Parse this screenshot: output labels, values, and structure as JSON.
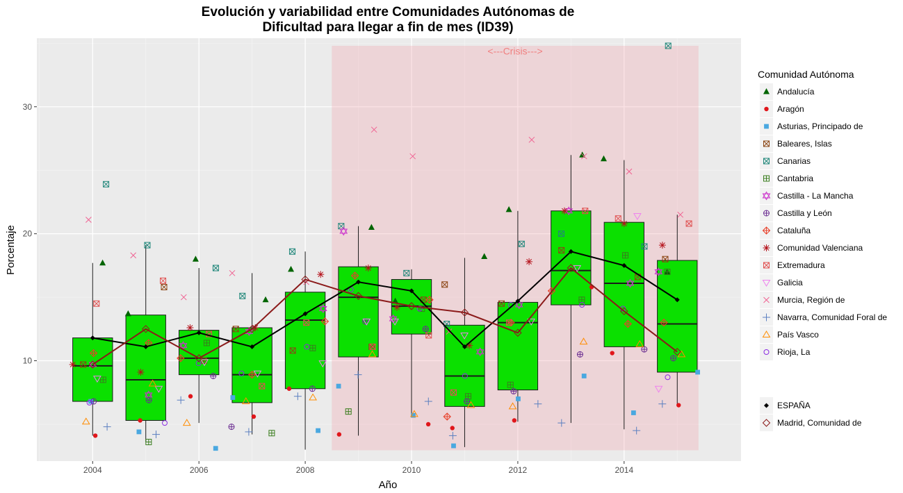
{
  "chart_data": {
    "type": "boxplot",
    "title": [
      "Evolución y variabilidad entre Comunidades Autónomas de",
      "Dificultad para llegar a fin de mes (ID39)"
    ],
    "xlabel": "Año",
    "ylabel": "Porcentaje",
    "xlim": [
      2002.95,
      2016.2
    ],
    "ylim": [
      2.1,
      35.4
    ],
    "x_ticks": [
      2004,
      2006,
      2008,
      2010,
      2012,
      2014
    ],
    "y_ticks": [
      10,
      20,
      30
    ],
    "grid": true,
    "crisis": {
      "label": "<---Crisis--->",
      "x_range": [
        2008.5,
        2015.4
      ],
      "y_range": [
        2.95,
        34.8
      ],
      "label_y": 34.4
    },
    "box_color": "#0be000",
    "boxes": [
      {
        "year": 2004,
        "whisker_low": 4.1,
        "q1": 6.8,
        "median": 9.6,
        "q3": 11.8,
        "whisker_high": 17.7
      },
      {
        "year": 2005,
        "whisker_low": 3.6,
        "q1": 5.3,
        "median": 8.5,
        "q3": 13.6,
        "whisker_high": 19.1
      },
      {
        "year": 2006,
        "whisker_low": 5.1,
        "q1": 8.9,
        "median": 10.2,
        "q3": 12.4,
        "whisker_high": 17.3
      },
      {
        "year": 2007,
        "whisker_low": 4.2,
        "q1": 6.7,
        "median": 8.9,
        "q3": 12.6,
        "whisker_high": 16.9
      },
      {
        "year": 2008,
        "whisker_low": 3.0,
        "q1": 7.8,
        "median": 13.2,
        "q3": 15.4,
        "whisker_high": 18.6
      },
      {
        "year": 2009,
        "whisker_low": 4.1,
        "q1": 10.3,
        "median": 15.0,
        "q3": 17.4,
        "whisker_high": 20.6
      },
      {
        "year": 2010,
        "whisker_low": 5.7,
        "q1": 12.1,
        "median": 14.3,
        "q3": 16.4,
        "whisker_high": 17.2
      },
      {
        "year": 2011,
        "whisker_low": 3.2,
        "q1": 6.4,
        "median": 8.8,
        "q3": 12.8,
        "whisker_high": 18.1
      },
      {
        "year": 2012,
        "whisker_low": 5.2,
        "q1": 7.7,
        "median": 13.0,
        "q3": 14.6,
        "whisker_high": 21.8
      },
      {
        "year": 2013,
        "whisker_low": 5.1,
        "q1": 14.4,
        "median": 17.1,
        "q3": 21.8,
        "whisker_high": 26.2
      },
      {
        "year": 2014,
        "whisker_low": 4.6,
        "q1": 11.1,
        "median": 16.1,
        "q3": 20.9,
        "whisker_high": 25.8
      },
      {
        "year": 2015,
        "whisker_low": 6.4,
        "q1": 9.1,
        "median": 12.9,
        "q3": 17.9,
        "whisker_high": 21.5
      }
    ],
    "lines": [
      {
        "name": "ESPAÑA",
        "color": "#000000",
        "values": [
          11.8,
          11.1,
          12.2,
          11.1,
          13.7,
          16.2,
          15.5,
          11.1,
          14.7,
          18.6,
          17.5,
          14.8
        ]
      },
      {
        "name": "Madrid, Comunidad de",
        "color": "#8b1a1a",
        "values": [
          9.7,
          12.5,
          10.2,
          12.5,
          16.4,
          15.1,
          14.3,
          13.8,
          12.2,
          17.3,
          13.9,
          10.7
        ]
      }
    ],
    "legend_title": "Comunidad Autónoma",
    "legend_position": "right",
    "series": [
      {
        "name": "Andalucía",
        "shape": "triangle",
        "color": "#006400",
        "values": [
          17.7,
          13.7,
          18.0,
          14.8,
          17.2,
          20.5,
          14.7,
          18.2,
          21.9,
          26.2,
          25.9,
          17.0
        ]
      },
      {
        "name": "Aragón",
        "shape": "dot",
        "color": "#e0161b",
        "values": [
          4.1,
          5.3,
          7.2,
          5.6,
          7.8,
          4.2,
          5.0,
          4.7,
          5.3,
          15.8,
          10.6,
          6.5
        ]
      },
      {
        "name": "Asturias, Principado de",
        "shape": "square",
        "color": "#4aa8e0",
        "values": [
          6.8,
          4.4,
          3.1,
          7.1,
          4.5,
          8.0,
          5.7,
          3.3,
          7.0,
          8.8,
          5.9,
          9.1
        ]
      },
      {
        "name": "Baleares, Islas",
        "shape": "square-x",
        "color": "#8b4513",
        "values": [
          9.7,
          15.8,
          10.0,
          12.5,
          10.8,
          11.1,
          14.8,
          16.0,
          14.5,
          18.7,
          16.6,
          18.0
        ]
      },
      {
        "name": "Canarias",
        "shape": "square-x",
        "color": "#20877a",
        "values": [
          23.9,
          19.1,
          17.3,
          15.1,
          18.6,
          20.6,
          16.9,
          12.9,
          19.2,
          20.0,
          19.0,
          34.8
        ]
      },
      {
        "name": "Cantabria",
        "shape": "square-plus",
        "color": "#3a7d1e",
        "values": [
          8.5,
          3.6,
          11.4,
          4.3,
          11.0,
          6.0,
          14.1,
          7.2,
          8.1,
          14.8,
          18.3,
          17.0
        ]
      },
      {
        "name": "Castilla - La Mancha",
        "shape": "star-of-david",
        "color": "#cc33cc",
        "values": [
          9.7,
          7.3,
          11.2,
          12.3,
          14.1,
          20.2,
          13.3,
          10.7,
          14.4,
          21.8,
          16.1,
          17.0
        ]
      },
      {
        "name": "Castilla y León",
        "shape": "circle-plus",
        "color": "#6a2c91",
        "values": [
          6.8,
          6.9,
          8.8,
          4.8,
          7.8,
          13.1,
          12.5,
          6.8,
          7.6,
          10.5,
          10.9,
          10.2
        ]
      },
      {
        "name": "Cataluña",
        "shape": "diamond-plus",
        "color": "#e8402a",
        "values": [
          10.6,
          11.4,
          10.2,
          8.9,
          13.1,
          16.7,
          14.8,
          5.6,
          13.0,
          15.5,
          12.9,
          13.0
        ]
      },
      {
        "name": "Comunidad Valenciana",
        "shape": "asterisk",
        "color": "#b5121b",
        "values": [
          9.7,
          9.1,
          12.6,
          12.6,
          16.8,
          17.3,
          14.2,
          11.2,
          17.8,
          21.8,
          20.8,
          19.1
        ]
      },
      {
        "name": "Extremadura",
        "shape": "square-x",
        "color": "#e05050",
        "values": [
          14.5,
          16.3,
          12.1,
          8.0,
          13.0,
          11.1,
          12.0,
          7.5,
          13.0,
          21.8,
          21.2,
          20.8
        ]
      },
      {
        "name": "Galicia",
        "shape": "triangle-down",
        "color": "#ee82ee",
        "values": [
          8.6,
          7.8,
          9.9,
          9.0,
          9.8,
          13.1,
          13.1,
          12.0,
          13.1,
          17.3,
          21.4,
          7.8
        ]
      },
      {
        "name": "Murcia, Región de",
        "shape": "x",
        "color": "#f06292",
        "values": [
          21.1,
          18.3,
          15.0,
          16.9,
          16.2,
          28.2,
          26.1,
          12.3,
          27.4,
          26.1,
          24.9,
          21.5
        ]
      },
      {
        "name": "Navarra, Comunidad Foral de",
        "shape": "plus",
        "color": "#5a7fc0",
        "values": [
          4.8,
          4.2,
          6.9,
          4.4,
          7.2,
          8.9,
          6.8,
          4.1,
          6.6,
          5.1,
          4.5,
          6.6
        ]
      },
      {
        "name": "País Vasco",
        "shape": "triangle-open",
        "color": "#ff8c00",
        "values": [
          5.2,
          8.2,
          5.1,
          6.8,
          7.1,
          10.5,
          5.8,
          6.5,
          6.4,
          11.5,
          11.3,
          10.5
        ]
      },
      {
        "name": "Rioja, La",
        "shape": "circle",
        "color": "#8a2be2",
        "values": [
          6.7,
          5.1,
          9.8,
          9.0,
          11.1,
          15.6,
          14.1,
          8.8,
          14.4,
          14.4,
          14.1,
          8.7
        ]
      }
    ]
  }
}
